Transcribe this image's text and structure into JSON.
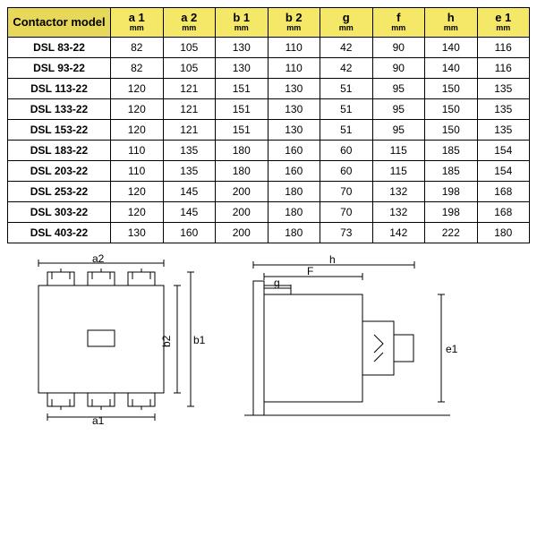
{
  "table": {
    "header_bg": "#f5e868",
    "model_header_bg": "#e8d85a",
    "border_color": "#000000",
    "columns": [
      {
        "main": "Contactor model",
        "unit": ""
      },
      {
        "main": "a 1",
        "unit": "mm"
      },
      {
        "main": "a 2",
        "unit": "mm"
      },
      {
        "main": "b 1",
        "unit": "mm"
      },
      {
        "main": "b 2",
        "unit": "mm"
      },
      {
        "main": "g",
        "unit": "mm"
      },
      {
        "main": "f",
        "unit": "mm"
      },
      {
        "main": "h",
        "unit": "mm"
      },
      {
        "main": "e 1",
        "unit": "mm"
      }
    ],
    "rows": [
      {
        "model": "DSL 83-22",
        "a1": "82",
        "a2": "105",
        "b1": "130",
        "b2": "110",
        "g": "42",
        "f": "90",
        "h": "140",
        "e1": "116"
      },
      {
        "model": "DSL 93-22",
        "a1": "82",
        "a2": "105",
        "b1": "130",
        "b2": "110",
        "g": "42",
        "f": "90",
        "h": "140",
        "e1": "116"
      },
      {
        "model": "DSL 113-22",
        "a1": "120",
        "a2": "121",
        "b1": "151",
        "b2": "130",
        "g": "51",
        "f": "95",
        "h": "150",
        "e1": "135"
      },
      {
        "model": "DSL 133-22",
        "a1": "120",
        "a2": "121",
        "b1": "151",
        "b2": "130",
        "g": "51",
        "f": "95",
        "h": "150",
        "e1": "135"
      },
      {
        "model": "DSL 153-22",
        "a1": "120",
        "a2": "121",
        "b1": "151",
        "b2": "130",
        "g": "51",
        "f": "95",
        "h": "150",
        "e1": "135"
      },
      {
        "model": "DSL 183-22",
        "a1": "110",
        "a2": "135",
        "b1": "180",
        "b2": "160",
        "g": "60",
        "f": "115",
        "h": "185",
        "e1": "154"
      },
      {
        "model": "DSL 203-22",
        "a1": "110",
        "a2": "135",
        "b1": "180",
        "b2": "160",
        "g": "60",
        "f": "115",
        "h": "185",
        "e1": "154"
      },
      {
        "model": "DSL 253-22",
        "a1": "120",
        "a2": "145",
        "b1": "200",
        "b2": "180",
        "g": "70",
        "f": "132",
        "h": "198",
        "e1": "168"
      },
      {
        "model": "DSL 303-22",
        "a1": "120",
        "a2": "145",
        "b1": "200",
        "b2": "180",
        "g": "70",
        "f": "132",
        "h": "198",
        "e1": "168"
      },
      {
        "model": "DSL 403-22",
        "a1": "130",
        "a2": "160",
        "b1": "200",
        "b2": "180",
        "g": "73",
        "f": "142",
        "h": "222",
        "e1": "180"
      }
    ]
  },
  "diagram": {
    "labels": {
      "a1": "a1",
      "a2": "a2",
      "b1": "b1",
      "b2": "b2",
      "g": "g",
      "F": "F",
      "h": "h",
      "e1": "e1"
    },
    "stroke": "#000000",
    "fontsize": 12
  }
}
